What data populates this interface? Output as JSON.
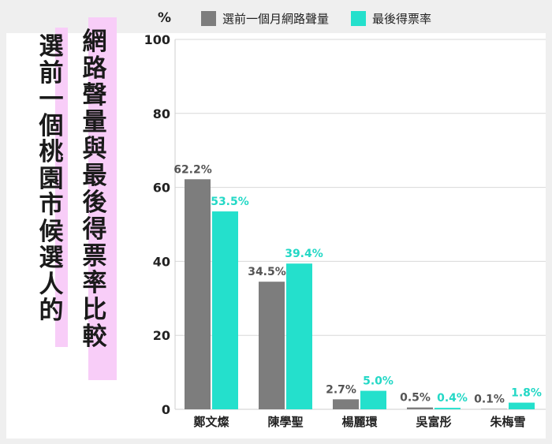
{
  "title_lines": {
    "left": [
      "選",
      "前",
      "一",
      "個",
      "桃",
      "園",
      "市",
      "候",
      "選",
      "人",
      "的"
    ],
    "right": [
      "網",
      "路",
      "聲",
      "量",
      "與",
      "最",
      "後",
      "得",
      "票",
      "率",
      "比",
      "較"
    ]
  },
  "unit_label": "%",
  "legend": [
    {
      "label": "選前一個月網路聲量",
      "color": "#7d7d7d"
    },
    {
      "label": "最後得票率",
      "color": "#24e0cc"
    }
  ],
  "chart_data": {
    "type": "bar",
    "categories": [
      "鄭文燦",
      "陳學聖",
      "楊麗環",
      "吳富彤",
      "朱梅雪"
    ],
    "series": [
      {
        "name": "選前一個月網路聲量",
        "values": [
          62.2,
          34.5,
          2.7,
          0.5,
          0.1
        ],
        "labels": [
          "62.2%",
          "34.5%",
          "2.7%",
          "0.5%",
          "0.1%"
        ],
        "color": "#7d7d7d",
        "label_color": "#555555"
      },
      {
        "name": "最後得票率",
        "values": [
          53.5,
          39.4,
          5.0,
          0.4,
          1.8
        ],
        "labels": [
          "53.5%",
          "39.4%",
          "5.0%",
          "0.4%",
          "1.8%"
        ],
        "color": "#24e0cc",
        "label_color": "#24d8c6"
      }
    ],
    "yticks": [
      0,
      20,
      40,
      60,
      80,
      100
    ],
    "ylim": [
      0,
      100
    ],
    "ylabel": "%",
    "grid": true,
    "legend_position": "top"
  }
}
